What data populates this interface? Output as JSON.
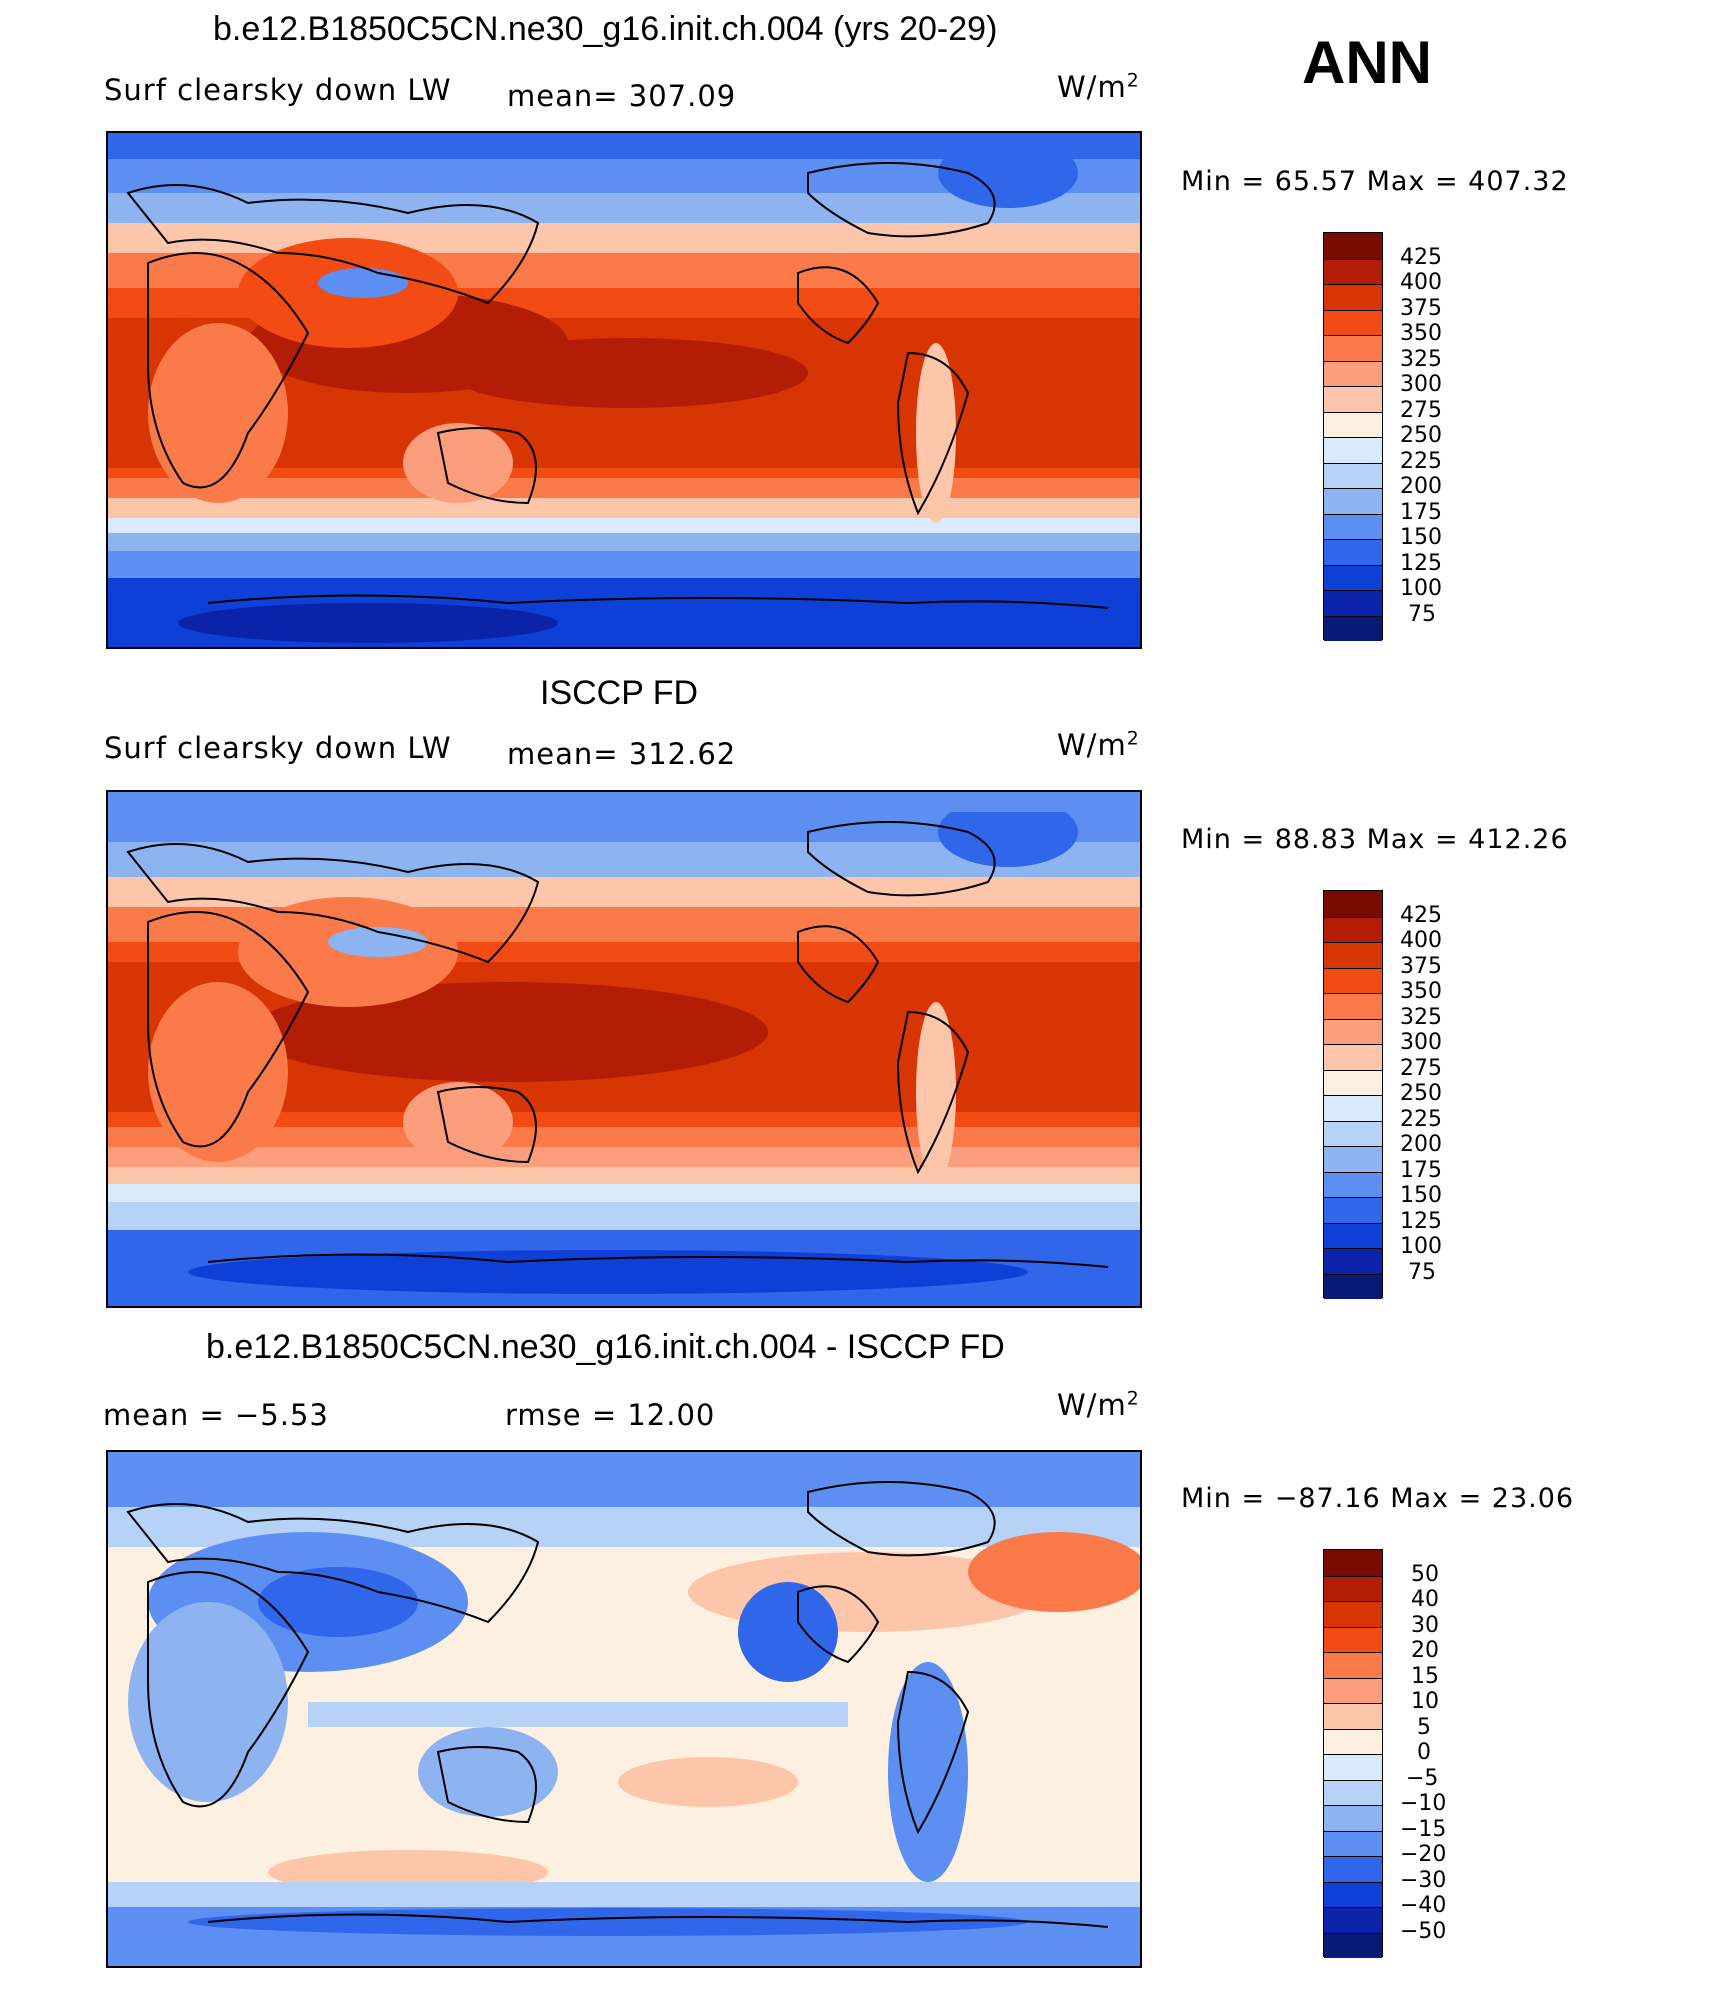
{
  "season": "ANN",
  "units": "W/m",
  "units_sup": "2",
  "panels": [
    {
      "title": "b.e12.B1850C5CN.ne30_g16.init.ch.004 (yrs 20-29)",
      "left_label": "Surf clearsky down LW",
      "center_label": "mean= 307.09",
      "minmax": "Min =   65.57 Max = 407.32",
      "levels": [
        "425",
        "400",
        "375",
        "350",
        "325",
        "300",
        "275",
        "250",
        "225",
        "200",
        "175",
        "150",
        "125",
        "100",
        "75"
      ],
      "colors": [
        "#7a0a04",
        "#b31d05",
        "#d83505",
        "#f24b13",
        "#fa7a4a",
        "#fc9e7c",
        "#fdc6ab",
        "#fdf0e0",
        "#d8eafb",
        "#b6d2f7",
        "#8db4f1",
        "#5c8ff1",
        "#2f66ea",
        "#0e3fd7",
        "#0a23a8",
        "#081a73"
      ]
    },
    {
      "title": "ISCCP FD",
      "left_label": "Surf clearsky down LW",
      "center_label": "mean= 312.62",
      "minmax": "Min =   88.83 Max = 412.26",
      "levels": [
        "425",
        "400",
        "375",
        "350",
        "325",
        "300",
        "275",
        "250",
        "225",
        "200",
        "175",
        "150",
        "125",
        "100",
        "75"
      ],
      "colors": [
        "#7a0a04",
        "#b31d05",
        "#d83505",
        "#f24b13",
        "#fa7a4a",
        "#fc9e7c",
        "#fdc6ab",
        "#fdf0e0",
        "#d8eafb",
        "#b6d2f7",
        "#8db4f1",
        "#5c8ff1",
        "#2f66ea",
        "#0e3fd7",
        "#0a23a8",
        "#081a73"
      ]
    },
    {
      "title": "b.e12.B1850C5CN.ne30_g16.init.ch.004 - ISCCP FD",
      "left_label": "mean =   −5.53",
      "center_label": "rmse =   12.00",
      "minmax": "Min = −87.16 Max =   23.06",
      "levels": [
        "50",
        "40",
        "30",
        "20",
        "15",
        "10",
        "5",
        "0",
        "−5",
        "−10",
        "−15",
        "−20",
        "−30",
        "−40",
        "−50"
      ],
      "colors": [
        "#7a0a04",
        "#b31d05",
        "#d83505",
        "#f24b13",
        "#fa7a4a",
        "#fc9e7c",
        "#fdc6ab",
        "#fdf0e0",
        "#d8eafb",
        "#b6d2f7",
        "#8db4f1",
        "#5c8ff1",
        "#2f66ea",
        "#0e3fd7",
        "#0a23a8",
        "#081a73"
      ]
    }
  ]
}
